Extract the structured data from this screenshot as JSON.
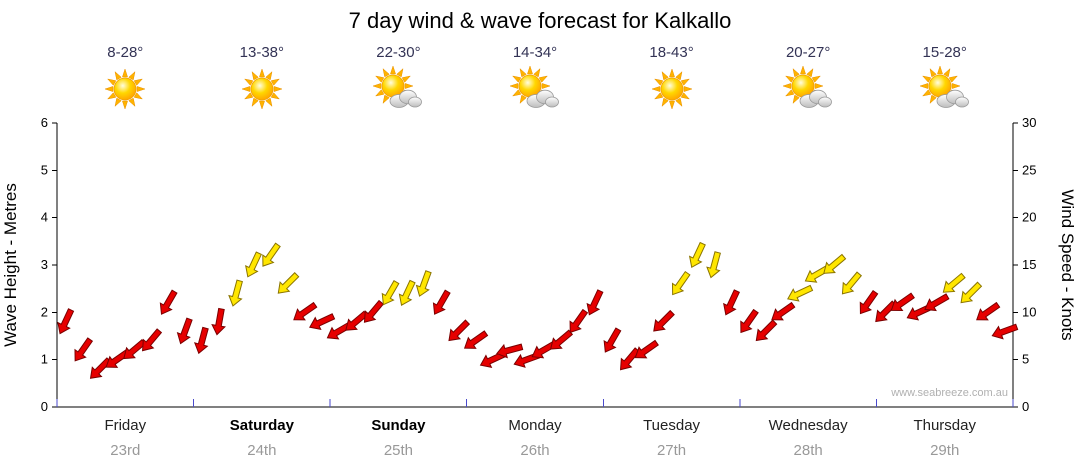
{
  "title": "7 day wind & wave forecast for Kalkallo",
  "watermark": "www.seabreeze.com.au",
  "colors": {
    "arrow_red": "#e60000",
    "arrow_red_outline": "#7a0000",
    "arrow_yellow": "#ffe600",
    "arrow_yellow_outline": "#8a7400",
    "day_tick_blue": "#4a4acc",
    "axis": "#000000",
    "day_text": "#222222",
    "date_gray": "#999999",
    "temp_text": "#333355",
    "watermark_gray": "#b0b0b0"
  },
  "days": [
    {
      "name": "Friday",
      "date": "23rd",
      "weekend": false,
      "temp": "8-28°",
      "icon": "sun"
    },
    {
      "name": "Saturday",
      "date": "24th",
      "weekend": true,
      "temp": "13-38°",
      "icon": "sun"
    },
    {
      "name": "Sunday",
      "date": "25th",
      "weekend": true,
      "temp": "22-30°",
      "icon": "sun-cloud"
    },
    {
      "name": "Monday",
      "date": "26th",
      "weekend": false,
      "temp": "14-34°",
      "icon": "sun-cloud"
    },
    {
      "name": "Tuesday",
      "date": "27th",
      "weekend": false,
      "temp": "18-43°",
      "icon": "sun"
    },
    {
      "name": "Wednesday",
      "date": "28th",
      "weekend": false,
      "temp": "20-27°",
      "icon": "sun-cloud"
    },
    {
      "name": "Thursday",
      "date": "29th",
      "weekend": false,
      "temp": "15-28°",
      "icon": "sun-cloud"
    }
  ],
  "axes": {
    "left_label": "Wave Height - Metres",
    "left_ticks": [
      0,
      1,
      2,
      3,
      4,
      5,
      6
    ],
    "left_range": [
      0,
      6
    ],
    "right_label": "Wind Speed - Knots",
    "right_ticks": [
      0,
      5,
      10,
      15,
      20,
      25,
      30
    ],
    "right_range": [
      0,
      30
    ]
  },
  "chart_data": {
    "type": "scatter",
    "marker": "wind-direction-arrow",
    "title": "7 day wind & wave forecast for Kalkallo",
    "x_axis": {
      "days": [
        "Friday 23rd",
        "Saturday 24th",
        "Sunday 25th",
        "Monday 26th",
        "Tuesday 27th",
        "Wednesday 28th",
        "Thursday 29th"
      ],
      "points_per_day": 8
    },
    "y_left": {
      "label": "Wave Height - Metres",
      "range": [
        0,
        6
      ],
      "ticks": [
        0,
        1,
        2,
        3,
        4,
        5,
        6
      ]
    },
    "y_right": {
      "label": "Wind Speed - Knots",
      "range": [
        0,
        30
      ],
      "ticks": [
        0,
        5,
        10,
        15,
        20,
        25,
        30
      ]
    },
    "series": [
      {
        "name": "Wind speed (knots)",
        "values": [
          9,
          6,
          4,
          5,
          6,
          7,
          11,
          8,
          7,
          9,
          12,
          15,
          16,
          13,
          10,
          9,
          8,
          9,
          10,
          12,
          12,
          13,
          11,
          8,
          7,
          5,
          6,
          5,
          6,
          7,
          9,
          11,
          7,
          5,
          6,
          9,
          13,
          16,
          15,
          11,
          9,
          8,
          10,
          12,
          14,
          15,
          13,
          11,
          10,
          11,
          10,
          11,
          13,
          12,
          10,
          8
        ]
      },
      {
        "name": "Wind direction (deg)",
        "values": [
          205,
          215,
          225,
          235,
          230,
          220,
          210,
          200,
          195,
          190,
          195,
          205,
          215,
          225,
          235,
          245,
          240,
          230,
          220,
          210,
          205,
          200,
          210,
          225,
          235,
          245,
          255,
          250,
          240,
          230,
          215,
          205,
          210,
          220,
          235,
          225,
          215,
          205,
          195,
          205,
          215,
          225,
          235,
          245,
          240,
          230,
          220,
          215,
          225,
          235,
          245,
          240,
          230,
          225,
          235,
          250
        ]
      }
    ],
    "color_rule": {
      "description": "arrow is yellow when wind >= threshold knots, otherwise red",
      "threshold_knots": 12
    },
    "legend": "none",
    "grid": false
  }
}
